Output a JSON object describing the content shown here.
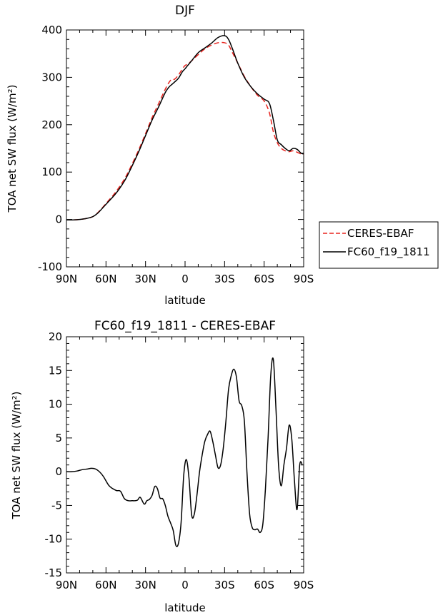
{
  "chart_data": [
    {
      "type": "line",
      "title": "DJF",
      "xlabel": "latitude",
      "ylabel": "TOA net SW flux (W/m²)",
      "xlim": [
        90,
        -90
      ],
      "ylim": [
        -100,
        400
      ],
      "xticks": [
        90,
        60,
        30,
        0,
        -30,
        -60,
        -90
      ],
      "xtick_labels": [
        "90N",
        "60N",
        "30N",
        "0",
        "30S",
        "60S",
        "90S"
      ],
      "yticks": [
        -100,
        0,
        100,
        200,
        300,
        400
      ],
      "ytick_labels": [
        "-100",
        "0",
        "100",
        "200",
        "300",
        "400"
      ],
      "grid": false,
      "legend": "outside-right",
      "series": [
        {
          "name": "CERES-EBAF",
          "color": "#e8231e",
          "dash": "dashed",
          "x": [
            90,
            85,
            80,
            75,
            70,
            66,
            62,
            58,
            54,
            50,
            45,
            40,
            35,
            30,
            25,
            20,
            15,
            12,
            10,
            8,
            5,
            2,
            0,
            -2,
            -5,
            -10,
            -15,
            -20,
            -25,
            -30,
            -33,
            -36,
            -40,
            -45,
            -50,
            -55,
            -60,
            -64,
            -67,
            -70,
            -73,
            -76,
            -79,
            -82,
            -85,
            -88,
            -90
          ],
          "y": [
            -1,
            -1,
            0,
            2,
            6,
            15,
            27,
            40,
            53,
            68,
            90,
            118,
            148,
            181,
            215,
            245,
            275,
            290,
            296,
            296,
            305,
            318,
            325,
            328,
            335,
            348,
            360,
            368,
            373,
            373,
            368,
            352,
            330,
            302,
            280,
            262,
            250,
            225,
            185,
            162,
            150,
            145,
            143,
            145,
            142,
            138,
            137
          ]
        },
        {
          "name": "FC60_f19_1811",
          "color": "#000000",
          "dash": "solid",
          "x": [
            90,
            85,
            80,
            75,
            70,
            66,
            62,
            58,
            54,
            50,
            45,
            40,
            35,
            30,
            25,
            20,
            15,
            12,
            10,
            8,
            5,
            2,
            0,
            -2,
            -5,
            -10,
            -15,
            -20,
            -25,
            -30,
            -33,
            -36,
            -40,
            -45,
            -50,
            -55,
            -60,
            -64,
            -67,
            -70,
            -73,
            -76,
            -79,
            -82,
            -85,
            -88,
            -90
          ],
          "y": [
            -1,
            -1,
            0,
            2,
            6,
            14,
            26,
            38,
            50,
            64,
            86,
            114,
            144,
            177,
            210,
            238,
            268,
            280,
            285,
            290,
            298,
            312,
            318,
            325,
            335,
            352,
            362,
            372,
            384,
            388,
            380,
            360,
            330,
            300,
            280,
            265,
            254,
            245,
            210,
            168,
            158,
            150,
            145,
            150,
            148,
            140,
            138
          ]
        }
      ]
    },
    {
      "type": "line",
      "title": "FC60_f19_1811 - CERES-EBAF",
      "xlabel": "latitude",
      "ylabel": "TOA net SW flux (W/m²)",
      "xlim": [
        90,
        -90
      ],
      "ylim": [
        -15,
        20
      ],
      "xticks": [
        90,
        60,
        30,
        0,
        -30,
        -60,
        -90
      ],
      "xtick_labels": [
        "90N",
        "60N",
        "30N",
        "0",
        "30S",
        "60S",
        "90S"
      ],
      "yticks": [
        -15,
        -10,
        -5,
        0,
        5,
        10,
        15,
        20
      ],
      "ytick_labels": [
        "-15",
        "-10",
        "-5",
        "0",
        "5",
        "10",
        "15",
        "20"
      ],
      "grid": false,
      "series": [
        {
          "color": "#000000",
          "dash": "solid",
          "x": [
            90,
            86,
            82,
            78,
            74,
            71,
            68,
            65,
            62,
            58,
            55,
            52,
            49,
            46,
            43,
            40,
            38,
            36,
            34,
            31,
            29,
            27,
            25,
            23,
            21,
            19,
            17,
            15,
            13,
            11,
            9,
            7,
            5,
            3,
            1,
            -1,
            -3,
            -5,
            -7,
            -9,
            -11,
            -13,
            -15,
            -17,
            -19,
            -21,
            -23,
            -25,
            -27,
            -29,
            -31,
            -33,
            -35,
            -37,
            -39,
            -41,
            -43,
            -45,
            -47,
            -49,
            -51,
            -53,
            -55,
            -57,
            -59,
            -61,
            -63,
            -65,
            -67,
            -69,
            -71,
            -73,
            -75,
            -77,
            -79,
            -81,
            -83,
            -85,
            -87,
            -89
          ],
          "y": [
            0,
            0,
            0.1,
            0.3,
            0.4,
            0.5,
            0.4,
            0,
            -0.7,
            -2,
            -2.5,
            -2.8,
            -2.9,
            -4,
            -4.3,
            -4.3,
            -4.3,
            -4.2,
            -3.8,
            -4.8,
            -4.3,
            -4.1,
            -3.5,
            -2.2,
            -2.5,
            -3.9,
            -4,
            -5,
            -6.6,
            -7.6,
            -8.7,
            -10.9,
            -10.6,
            -7.5,
            -0.5,
            1.8,
            -1,
            -6.4,
            -6.3,
            -3.5,
            0,
            2.5,
            4.5,
            5.5,
            6,
            4.5,
            2.5,
            0.6,
            1,
            3.5,
            7.5,
            12.2,
            14.2,
            15.2,
            14,
            10.5,
            9.8,
            7.5,
            -0.2,
            -6.3,
            -8.3,
            -8.6,
            -8.5,
            -9,
            -7.8,
            -2.5,
            5,
            14.2,
            16.6,
            9.2,
            0.8,
            -2.1,
            1,
            3.5,
            6.9,
            4.8,
            -1.3,
            -5.6,
            1,
            1
          ]
        }
      ]
    }
  ]
}
